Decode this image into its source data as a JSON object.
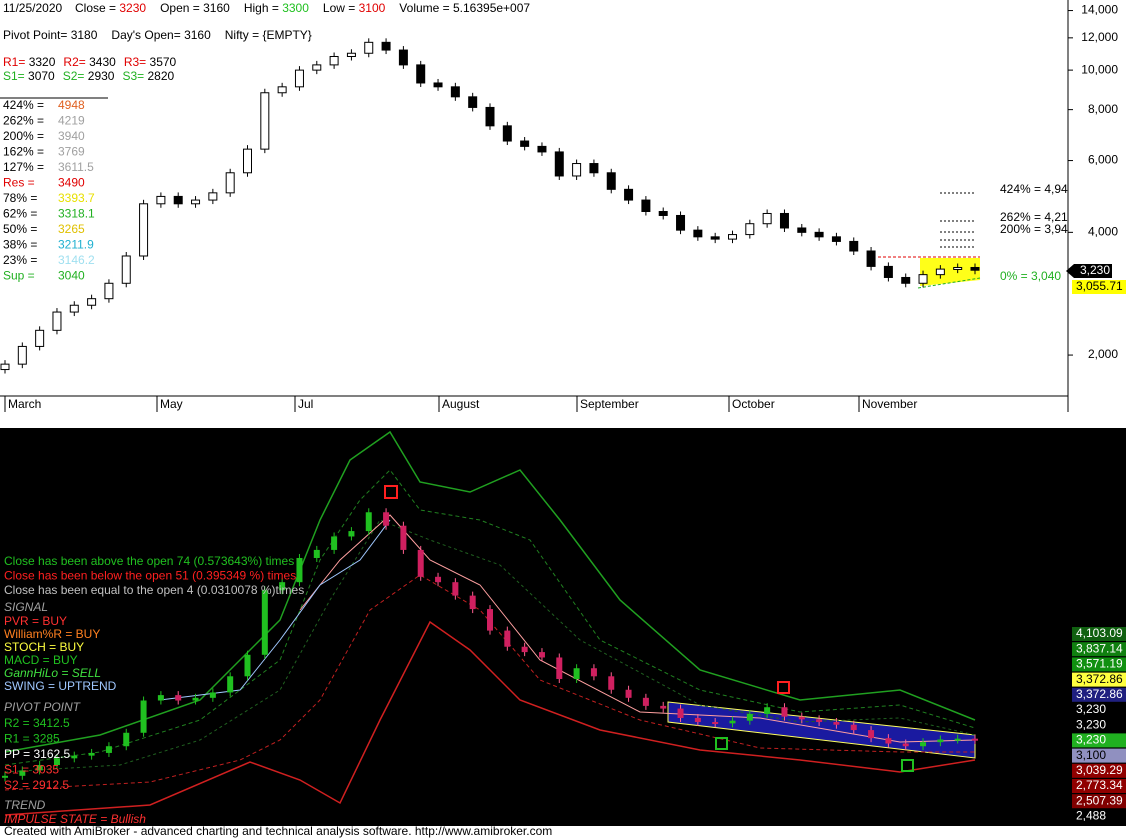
{
  "header": {
    "date": "11/25/2020",
    "close_label": "Close =",
    "close": "3230",
    "open": "Open = 3160",
    "high_label": "High =",
    "high": "3300",
    "low_label": "Low =",
    "low": "3100",
    "volume": "Volume = 5.16395e+007"
  },
  "pivots": {
    "pivot": "Pivot Point= 3180",
    "days_open": "Day's Open= 3160",
    "nifty": "Nifty = {EMPTY}",
    "resistances": [
      {
        "label": "R1=",
        "value": "3320"
      },
      {
        "label": "R2=",
        "value": "3430"
      },
      {
        "label": "R3=",
        "value": "3570"
      }
    ],
    "supports": [
      {
        "label": "S1=",
        "value": "3070"
      },
      {
        "label": "S2=",
        "value": "2930"
      },
      {
        "label": "S3=",
        "value": "2820"
      }
    ]
  },
  "fib_levels": [
    {
      "label": "424% =",
      "value": "4948",
      "label_color": "#000000",
      "color": "#e06020"
    },
    {
      "label": "262% =",
      "value": "4219",
      "label_color": "#000000",
      "color": "#a0a0a0"
    },
    {
      "label": "200% =",
      "value": "3940",
      "label_color": "#000000",
      "color": "#a0a0a0"
    },
    {
      "label": "162% =",
      "value": "3769",
      "label_color": "#000000",
      "color": "#a0a0a0"
    },
    {
      "label": "127% =",
      "value": "3611.5",
      "label_color": "#000000",
      "color": "#a0a0a0"
    },
    {
      "label": "Res =",
      "value": "3490",
      "label_color": "#e00000",
      "color": "#e00000"
    },
    {
      "label": "78% =",
      "value": "3393.7",
      "label_color": "#000000",
      "color": "#e8e000"
    },
    {
      "label": "62% =",
      "value": "3318.1",
      "label_color": "#000000",
      "color": "#20b020"
    },
    {
      "label": "50% =",
      "value": "3265",
      "label_color": "#000000",
      "color": "#e0c000"
    },
    {
      "label": "38% =",
      "value": "3211.9",
      "label_color": "#000000",
      "color": "#20b0d0"
    },
    {
      "label": "23% =",
      "value": "3146.2",
      "label_color": "#000000",
      "color": "#a0e0f0"
    },
    {
      "label": "Sup =",
      "value": "3040",
      "label_color": "#20b020",
      "color": "#20b020"
    }
  ],
  "upper_pane": {
    "log_scale": true,
    "ylim": [
      1450,
      14860
    ],
    "yticks": [
      {
        "value": 14000,
        "label": "14,000"
      },
      {
        "value": 12000,
        "label": "12,000"
      },
      {
        "value": 10000,
        "label": "10,000"
      },
      {
        "value": 8000,
        "label": "8,000"
      },
      {
        "value": 6000,
        "label": "6,000"
      },
      {
        "value": 4000,
        "label": "4,000"
      },
      {
        "value": 2000,
        "label": "2,000"
      }
    ],
    "months": [
      "March",
      "May",
      "Jul",
      "August",
      "September",
      "October",
      "November"
    ],
    "closes": [
      1900,
      2100,
      2300,
      2550,
      2650,
      2750,
      3000,
      3500,
      4700,
      4900,
      4700,
      4800,
      5000,
      5600,
      6400,
      8800,
      9100,
      10000,
      10300,
      10800,
      11000,
      11700,
      11200,
      10300,
      9300,
      9100,
      8600,
      8100,
      7300,
      6700,
      6500,
      6300,
      5500,
      5900,
      5600,
      5100,
      4800,
      4500,
      4400,
      4050,
      3900,
      3850,
      3950,
      4200,
      4450,
      4100,
      4000,
      3900,
      3800,
      3600,
      3300,
      3100,
      3000,
      3150,
      3250,
      3280,
      3230
    ],
    "right_labels": [
      "424% = 4,94",
      "262% = 4,21",
      "200% = 3,94",
      "0% = 3,040"
    ],
    "last_price": "3,230",
    "fib_price": "3,055.71"
  },
  "lower_pane": {
    "ylim": [
      33,
      14834
    ],
    "stats": [
      {
        "text": "Close has been above the open 74 (0.573643%) times",
        "color": "#20c020"
      },
      {
        "text": "Close has been below the open 51 (0.395349 %) times",
        "color": "#ff2020"
      },
      {
        "text": "Close has been equal to the open 4 (0.0310078 %)times",
        "color": "#c0c0c0"
      }
    ],
    "signal_title": "SIGNAL",
    "signals": [
      {
        "text": "PVR = BUY",
        "color": "#ff3030"
      },
      {
        "text": "William%R = BUY",
        "color": "#ff8020"
      },
      {
        "text": "STOCH = BUY",
        "color": "#ffff40"
      },
      {
        "text": "MACD = BUY",
        "color": "#20c020"
      },
      {
        "text": "GannHiLo = SELL",
        "color": "#40e040"
      },
      {
        "text": "SWING = UPTREND",
        "color": "#a0c8ff"
      }
    ],
    "pivot_title": "PIVOT POINT",
    "pivot_levels": [
      {
        "text": "R2 = 3412.5",
        "color": "#20c020"
      },
      {
        "text": "R1 = 3285",
        "color": "#20c020"
      },
      {
        "text": "PP = 3162.5",
        "color": "#ffffff"
      },
      {
        "text": "S1 = 3035",
        "color": "#ff3030"
      },
      {
        "text": "S2 = 2912.5",
        "color": "#ff3030"
      }
    ],
    "trend_title": "TREND",
    "trend": "IMPULSE STATE = Bullish",
    "badges": [
      {
        "text": "4,103.09",
        "bg": "#106010",
        "fg": "#ffffff"
      },
      {
        "text": "3,837.14",
        "bg": "#108010",
        "fg": "#ffffff"
      },
      {
        "text": "3,571.19",
        "bg": "#109010",
        "fg": "#ffffff"
      },
      {
        "text": "3,372.86",
        "bg": "#ffff40",
        "fg": "#000000"
      },
      {
        "text": "3,372.86",
        "bg": "#202080",
        "fg": "#ffffff"
      },
      {
        "text": "3,230",
        "bg": "#000000",
        "fg": "#ffffff"
      },
      {
        "text": "3,230",
        "bg": "#000000",
        "fg": "#ffffff"
      },
      {
        "text": "3,230",
        "bg": "#20b020",
        "fg": "#ffffff"
      },
      {
        "text": "3,100",
        "bg": "#9090c0",
        "fg": "#000000"
      },
      {
        "text": "3,039.29",
        "bg": "#900000",
        "fg": "#ffffff"
      },
      {
        "text": "2,773.34",
        "bg": "#900000",
        "fg": "#ffffff"
      },
      {
        "text": "2,507.39",
        "bg": "#800000",
        "fg": "#ffffff"
      },
      {
        "text": "2,488",
        "bg": "#000000",
        "fg": "#ffffff"
      }
    ]
  },
  "footer": "Created with AmiBroker - advanced charting and technical analysis software. http://www.amibroker.com"
}
